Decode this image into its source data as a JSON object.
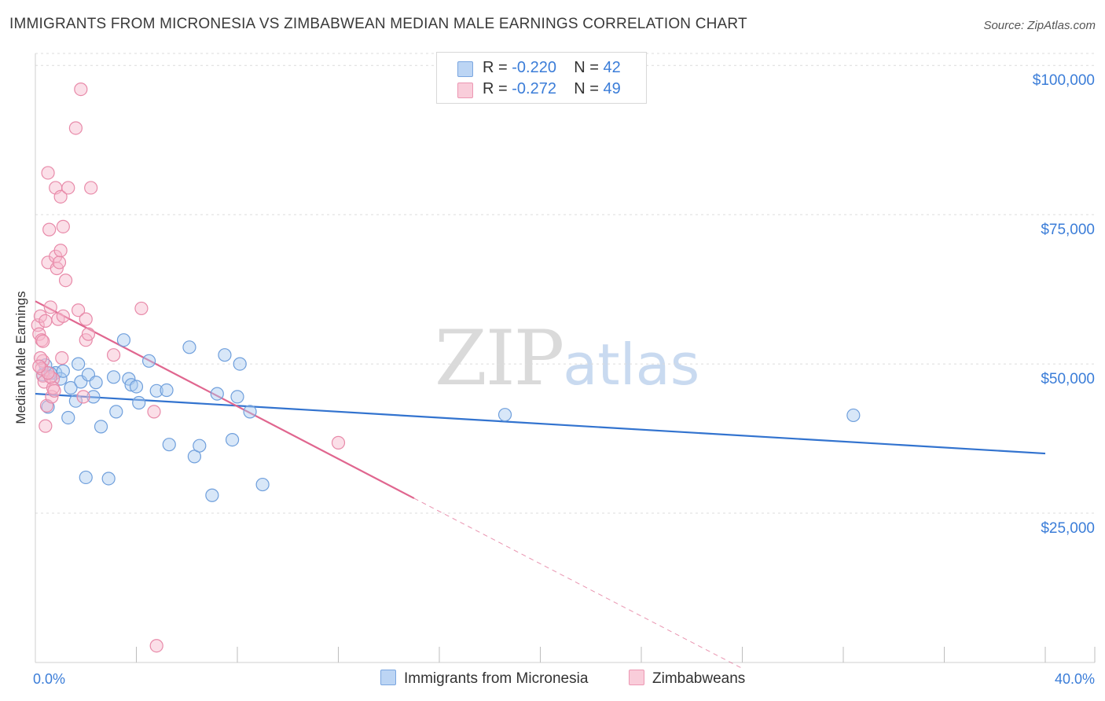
{
  "header": {
    "title": "IMMIGRANTS FROM MICRONESIA VS ZIMBABWEAN MEDIAN MALE EARNINGS CORRELATION CHART",
    "source": "Source: ZipAtlas.com"
  },
  "watermark": {
    "zip": "ZIP",
    "atlas": "atlas"
  },
  "legend": {
    "rows": [
      {
        "r_label": "R = ",
        "r_value": "-0.220",
        "n_label": "N = ",
        "n_value": "42",
        "color": "#a9c9f0"
      },
      {
        "r_label": "R = ",
        "r_value": "-0.272",
        "n_label": "N = ",
        "n_value": "49",
        "color": "#f6b8cc"
      }
    ]
  },
  "bottom_legend": {
    "series1": "Immigrants from Micronesia",
    "series2": "Zimbabweans"
  },
  "chart_data": {
    "type": "scatter",
    "title": "IMMIGRANTS FROM MICRONESIA VS ZIMBABWEAN MEDIAN MALE EARNINGS CORRELATION CHART",
    "xlabel": "",
    "ylabel": "Median Male Earnings",
    "xlim": [
      0,
      40
    ],
    "ylim": [
      0,
      102000
    ],
    "x_tick_labels": [
      "0.0%",
      "40.0%"
    ],
    "y_ticks": [
      {
        "value": 25000,
        "label": "$25,000"
      },
      {
        "value": 50000,
        "label": "$50,000"
      },
      {
        "value": 75000,
        "label": "$75,000"
      },
      {
        "value": 100000,
        "label": "$100,000"
      }
    ],
    "colors": {
      "micronesia": "#3b7dd8",
      "micronesia_fill": "#a9c9f0",
      "zimbabwe": "#e0668f",
      "zimbabwe_fill": "#f6b8cc"
    },
    "series": [
      {
        "name": "Immigrants from Micronesia",
        "points": [
          [
            0.3,
            48200
          ],
          [
            0.5,
            42800
          ],
          [
            0.8,
            48500
          ],
          [
            1.0,
            47500
          ],
          [
            1.3,
            41000
          ],
          [
            1.4,
            46000
          ],
          [
            1.6,
            43800
          ],
          [
            1.7,
            50000
          ],
          [
            1.8,
            47000
          ],
          [
            2.0,
            31000
          ],
          [
            2.1,
            48200
          ],
          [
            2.3,
            44500
          ],
          [
            2.4,
            46900
          ],
          [
            2.6,
            39500
          ],
          [
            2.9,
            30800
          ],
          [
            3.1,
            47800
          ],
          [
            3.2,
            42000
          ],
          [
            3.5,
            54000
          ],
          [
            3.7,
            47500
          ],
          [
            3.8,
            46500
          ],
          [
            4.0,
            46200
          ],
          [
            4.1,
            43500
          ],
          [
            4.5,
            50500
          ],
          [
            4.8,
            45500
          ],
          [
            5.2,
            45600
          ],
          [
            5.3,
            36500
          ],
          [
            6.1,
            52800
          ],
          [
            6.3,
            34500
          ],
          [
            6.5,
            36300
          ],
          [
            7.0,
            28000
          ],
          [
            7.2,
            45000
          ],
          [
            7.5,
            51500
          ],
          [
            7.8,
            37300
          ],
          [
            8.0,
            44500
          ],
          [
            8.1,
            50000
          ],
          [
            8.5,
            42000
          ],
          [
            9.0,
            29800
          ],
          [
            18.6,
            41500
          ],
          [
            32.4,
            41400
          ],
          [
            0.6,
            48400
          ],
          [
            1.1,
            48800
          ],
          [
            0.4,
            49800
          ]
        ],
        "trend": {
          "x": [
            0,
            40
          ],
          "y": [
            45000,
            35000
          ],
          "dashed": false
        }
      },
      {
        "name": "Zimbabweans",
        "points": [
          [
            0.1,
            56500
          ],
          [
            0.15,
            55000
          ],
          [
            0.2,
            58000
          ],
          [
            0.25,
            54000
          ],
          [
            0.3,
            50500
          ],
          [
            0.3,
            48000
          ],
          [
            0.35,
            47000
          ],
          [
            0.4,
            57200
          ],
          [
            0.4,
            39600
          ],
          [
            0.45,
            43000
          ],
          [
            0.5,
            82000
          ],
          [
            0.5,
            67000
          ],
          [
            0.55,
            72500
          ],
          [
            0.6,
            59500
          ],
          [
            0.65,
            44500
          ],
          [
            0.7,
            47500
          ],
          [
            0.7,
            46000
          ],
          [
            0.75,
            45500
          ],
          [
            0.8,
            68000
          ],
          [
            0.8,
            79500
          ],
          [
            0.85,
            66000
          ],
          [
            0.9,
            57500
          ],
          [
            0.95,
            67000
          ],
          [
            1.0,
            78000
          ],
          [
            1.0,
            69000
          ],
          [
            1.05,
            51000
          ],
          [
            1.1,
            58000
          ],
          [
            1.1,
            73000
          ],
          [
            1.2,
            64000
          ],
          [
            1.3,
            79500
          ],
          [
            1.6,
            89500
          ],
          [
            1.7,
            59000
          ],
          [
            1.8,
            96000
          ],
          [
            1.9,
            44500
          ],
          [
            2.0,
            54000
          ],
          [
            2.0,
            57500
          ],
          [
            2.1,
            55000
          ],
          [
            2.2,
            79500
          ],
          [
            3.1,
            51500
          ],
          [
            4.2,
            59300
          ],
          [
            4.7,
            42000
          ],
          [
            4.8,
            2800
          ],
          [
            12.0,
            36800
          ],
          [
            0.3,
            53800
          ],
          [
            0.2,
            51000
          ],
          [
            0.25,
            49200
          ],
          [
            0.6,
            47800
          ],
          [
            0.5,
            48500
          ],
          [
            0.15,
            49600
          ]
        ],
        "trend": {
          "x": [
            0,
            15
          ],
          "y": [
            60500,
            27500
          ],
          "dashed": false,
          "dashed_extension": {
            "x": [
              15,
              28
            ],
            "y": [
              27500,
              -1000
            ]
          }
        }
      }
    ]
  }
}
